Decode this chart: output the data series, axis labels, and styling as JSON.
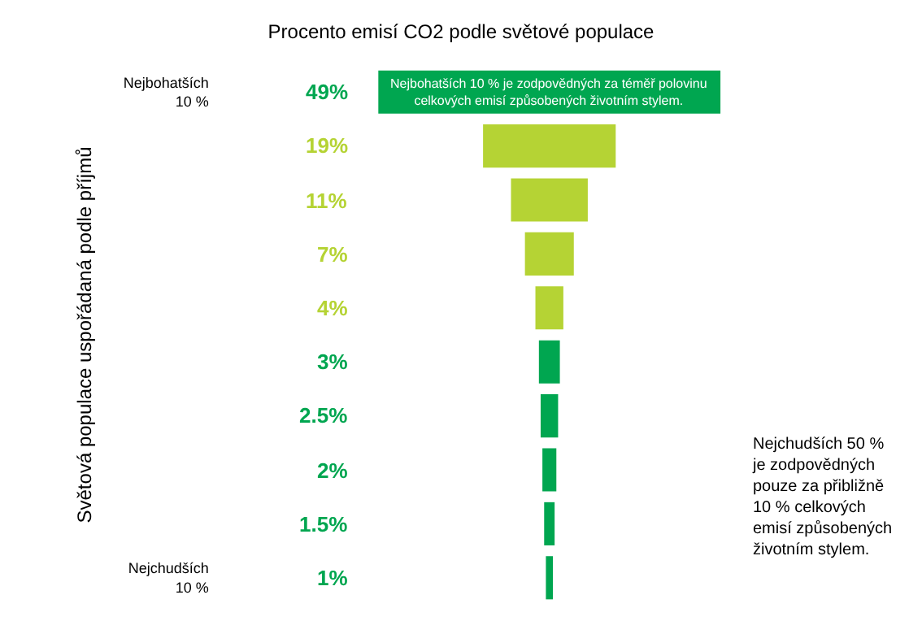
{
  "chart_data": {
    "type": "other",
    "title": "Procento emisí CO2 podle světové populace",
    "ylabel": "Světová populace uspořádaná podle příjmů",
    "categories": [
      "Nejbohatších 10 %",
      null,
      null,
      null,
      null,
      null,
      null,
      null,
      null,
      "Nejchudších 10 %"
    ],
    "values": [
      49,
      19,
      11,
      7,
      4,
      3,
      2.5,
      2,
      1.5,
      1
    ],
    "value_labels": [
      "49%",
      "19%",
      "11%",
      "7%",
      "4%",
      "3%",
      "2.5%",
      "2%",
      "1.5%",
      "1%"
    ],
    "colors": [
      "#00a650",
      "#b5d334",
      "#b5d334",
      "#b5d334",
      "#b5d334",
      "#00a650",
      "#00a650",
      "#00a650",
      "#00a650",
      "#00a650"
    ],
    "annotations": [
      "Nejbohatších 10 % je zodpovědných za téměř polovinu celkových emisí způsobených životním stylem.",
      "Nejchudších 50 % je zodpovědných pouze za přibližně 10 % celkových emisí způsobených životním stylem."
    ]
  }
}
